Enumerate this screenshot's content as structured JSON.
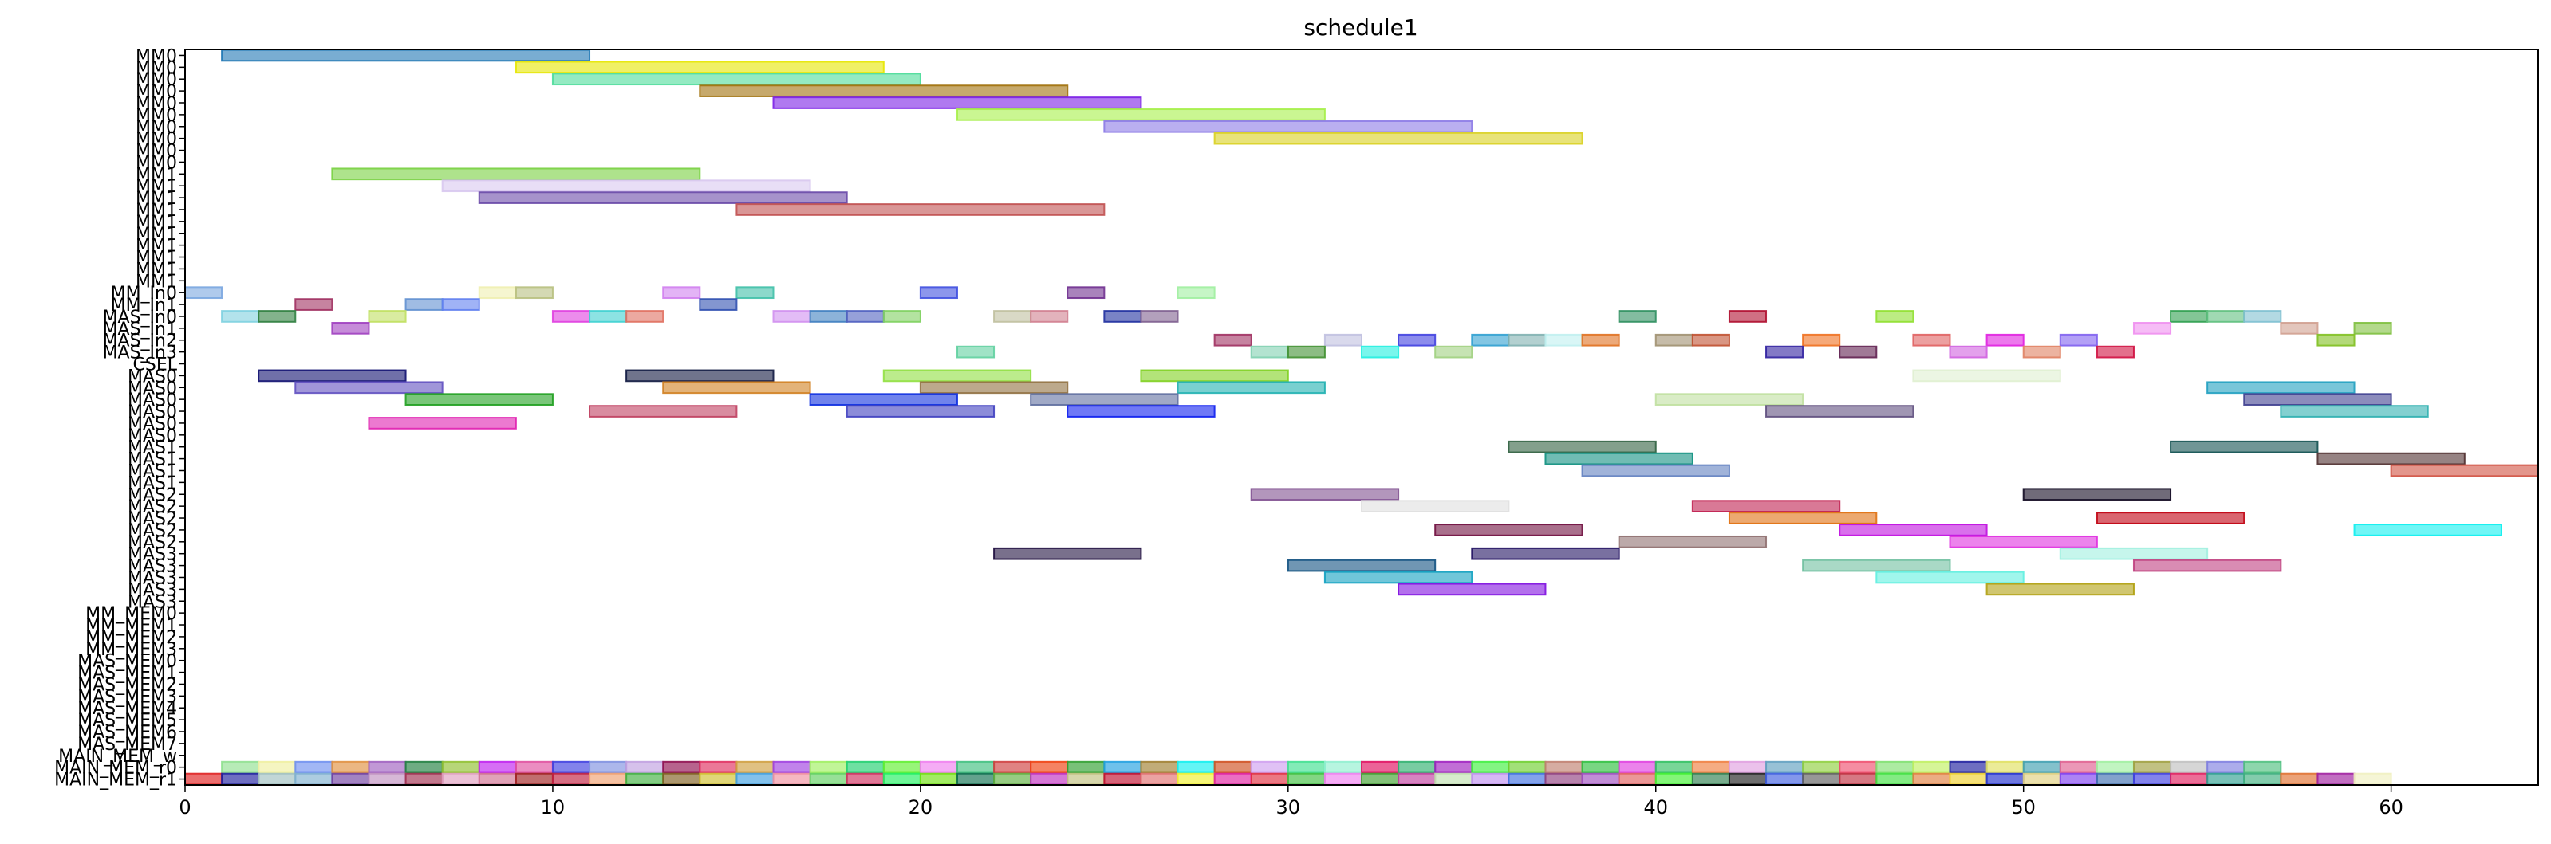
{
  "chart_data": {
    "type": "gantt",
    "title": "schedule1",
    "xlim": [
      0,
      64
    ],
    "x_ticks": [
      0,
      10,
      20,
      30,
      40,
      50,
      60
    ],
    "grid": false,
    "rows": [
      "MM0",
      "MM0",
      "MM0",
      "MM0",
      "MM0",
      "MM0",
      "MM0",
      "MM0",
      "MM0",
      "MM0",
      "MM1",
      "MM1",
      "MM1",
      "MM1",
      "MM1",
      "MM1",
      "MM1",
      "MM1",
      "MM1",
      "MM1",
      "MM_In0",
      "MM_In1",
      "MAS_In0",
      "MAS_In1",
      "MAS_In2",
      "MAS_In3",
      "CSEL",
      "MAS0",
      "MAS0",
      "MAS0",
      "MAS0",
      "MAS0",
      "MAS0",
      "MAS1",
      "MAS1",
      "MAS1",
      "MAS1",
      "MAS2",
      "MAS2",
      "MAS2",
      "MAS2",
      "MAS2",
      "MAS3",
      "MAS3",
      "MAS3",
      "MAS3",
      "MAS3",
      "MM_MEM0",
      "MM_MEM1",
      "MM_MEM2",
      "MM_MEM3",
      "MAS_MEM0",
      "MAS_MEM1",
      "MAS_MEM2",
      "MAS_MEM3",
      "MAS_MEM4",
      "MAS_MEM5",
      "MAS_MEM6",
      "MAS_MEM7",
      "MAIN_MEM_w",
      "MAIN_MEM_r0",
      "MAIN_MEM_r1"
    ],
    "tasks": [
      {
        "row": 0,
        "start": 1,
        "end": 11,
        "color": "#1f77b4"
      },
      {
        "row": 1,
        "start": 9,
        "end": 19,
        "color": "#e6e600"
      },
      {
        "row": 2,
        "start": 10,
        "end": 20,
        "color": "#4ddc9a"
      },
      {
        "row": 3,
        "start": 14,
        "end": 24,
        "color": "#a0700a"
      },
      {
        "row": 4,
        "start": 16,
        "end": 26,
        "color": "#7b1fe6"
      },
      {
        "row": 5,
        "start": 21,
        "end": 31,
        "color": "#a6f04a"
      },
      {
        "row": 6,
        "start": 25,
        "end": 35,
        "color": "#8c7ae6"
      },
      {
        "row": 7,
        "start": 28,
        "end": 38,
        "color": "#d9d020"
      },
      {
        "row": 10,
        "start": 4,
        "end": 14,
        "color": "#78d040"
      },
      {
        "row": 11,
        "start": 7,
        "end": 17,
        "color": "#d8c8f0"
      },
      {
        "row": 12,
        "start": 8,
        "end": 18,
        "color": "#6a4aa8"
      },
      {
        "row": 13,
        "start": 15,
        "end": 25,
        "color": "#c05050"
      },
      {
        "row": 20,
        "start": 0,
        "end": 1,
        "color": "#7aa6e0"
      },
      {
        "row": 20,
        "start": 8,
        "end": 9,
        "color": "#f0f0b0"
      },
      {
        "row": 20,
        "start": 9,
        "end": 10,
        "color": "#b8c080"
      },
      {
        "row": 20,
        "start": 13,
        "end": 14,
        "color": "#d080f0"
      },
      {
        "row": 20,
        "start": 15,
        "end": 16,
        "color": "#40c0a8"
      },
      {
        "row": 20,
        "start": 20,
        "end": 21,
        "color": "#4050e0"
      },
      {
        "row": 20,
        "start": 24,
        "end": 25,
        "color": "#703090"
      },
      {
        "row": 20,
        "start": 27,
        "end": 28,
        "color": "#a0f0a0"
      },
      {
        "row": 21,
        "start": 3,
        "end": 4,
        "color": "#a03060"
      },
      {
        "row": 21,
        "start": 6,
        "end": 7,
        "color": "#6090d0"
      },
      {
        "row": 21,
        "start": 7,
        "end": 8,
        "color": "#6080f0"
      },
      {
        "row": 21,
        "start": 14,
        "end": 15,
        "color": "#3050b0"
      },
      {
        "row": 22,
        "start": 1,
        "end": 2,
        "color": "#80d0e0"
      },
      {
        "row": 22,
        "start": 2,
        "end": 3,
        "color": "#308040"
      },
      {
        "row": 22,
        "start": 5,
        "end": 6,
        "color": "#c0e060"
      },
      {
        "row": 22,
        "start": 10,
        "end": 11,
        "color": "#e040e0"
      },
      {
        "row": 22,
        "start": 11,
        "end": 12,
        "color": "#40d0d0"
      },
      {
        "row": 22,
        "start": 12,
        "end": 13,
        "color": "#e07060"
      },
      {
        "row": 22,
        "start": 16,
        "end": 17,
        "color": "#d090f0"
      },
      {
        "row": 22,
        "start": 17,
        "end": 18,
        "color": "#4080c0"
      },
      {
        "row": 22,
        "start": 18,
        "end": 19,
        "color": "#5060c0"
      },
      {
        "row": 22,
        "start": 19,
        "end": 20,
        "color": "#80d060"
      },
      {
        "row": 22,
        "start": 22,
        "end": 23,
        "color": "#c0c0a0"
      },
      {
        "row": 22,
        "start": 23,
        "end": 24,
        "color": "#d08090"
      },
      {
        "row": 22,
        "start": 25,
        "end": 26,
        "color": "#2030a0"
      },
      {
        "row": 22,
        "start": 26,
        "end": 27,
        "color": "#806090"
      },
      {
        "row": 22,
        "start": 39,
        "end": 40,
        "color": "#309060"
      },
      {
        "row": 22,
        "start": 42,
        "end": 43,
        "color": "#b01030"
      },
      {
        "row": 22,
        "start": 46,
        "end": 47,
        "color": "#90e030"
      },
      {
        "row": 22,
        "start": 54,
        "end": 55,
        "color": "#30a050"
      },
      {
        "row": 22,
        "start": 55,
        "end": 56,
        "color": "#60c080"
      },
      {
        "row": 22,
        "start": 56,
        "end": 57,
        "color": "#80c0d0"
      },
      {
        "row": 23,
        "start": 4,
        "end": 5,
        "color": "#a040c0"
      },
      {
        "row": 23,
        "start": 53,
        "end": 54,
        "color": "#f090f0"
      },
      {
        "row": 23,
        "start": 57,
        "end": 58,
        "color": "#d0a090"
      },
      {
        "row": 23,
        "start": 59,
        "end": 60,
        "color": "#80c040"
      },
      {
        "row": 24,
        "start": 28,
        "end": 29,
        "color": "#a03060"
      },
      {
        "row": 24,
        "start": 31,
        "end": 32,
        "color": "#c0c0e0"
      },
      {
        "row": 24,
        "start": 33,
        "end": 34,
        "color": "#4040e0"
      },
      {
        "row": 24,
        "start": 35,
        "end": 36,
        "color": "#30a0d0"
      },
      {
        "row": 24,
        "start": 36,
        "end": 37,
        "color": "#80b0b0"
      },
      {
        "row": 24,
        "start": 37,
        "end": 38,
        "color": "#c0f0f0"
      },
      {
        "row": 24,
        "start": 38,
        "end": 39,
        "color": "#e07020"
      },
      {
        "row": 24,
        "start": 40,
        "end": 41,
        "color": "#a09070"
      },
      {
        "row": 24,
        "start": 41,
        "end": 42,
        "color": "#c05030"
      },
      {
        "row": 24,
        "start": 44,
        "end": 45,
        "color": "#f07020"
      },
      {
        "row": 24,
        "start": 47,
        "end": 48,
        "color": "#e06060"
      },
      {
        "row": 24,
        "start": 49,
        "end": 50,
        "color": "#e020e0"
      },
      {
        "row": 24,
        "start": 51,
        "end": 52,
        "color": "#8060f0"
      },
      {
        "row": 24,
        "start": 58,
        "end": 59,
        "color": "#80c020"
      },
      {
        "row": 25,
        "start": 21,
        "end": 22,
        "color": "#60d0a0"
      },
      {
        "row": 25,
        "start": 29,
        "end": 30,
        "color": "#80d0b0"
      },
      {
        "row": 25,
        "start": 30,
        "end": 31,
        "color": "#409030"
      },
      {
        "row": 25,
        "start": 32,
        "end": 33,
        "color": "#20f0e0"
      },
      {
        "row": 25,
        "start": 34,
        "end": 35,
        "color": "#a0d080"
      },
      {
        "row": 25,
        "start": 43,
        "end": 44,
        "color": "#3020a0"
      },
      {
        "row": 25,
        "start": 45,
        "end": 46,
        "color": "#602050"
      },
      {
        "row": 25,
        "start": 48,
        "end": 49,
        "color": "#d060e0"
      },
      {
        "row": 25,
        "start": 50,
        "end": 51,
        "color": "#e08060"
      },
      {
        "row": 25,
        "start": 52,
        "end": 53,
        "color": "#d01040"
      },
      {
        "row": 27,
        "start": 2,
        "end": 6,
        "color": "#101070"
      },
      {
        "row": 27,
        "start": 12,
        "end": 16,
        "color": "#101840"
      },
      {
        "row": 27,
        "start": 19,
        "end": 23,
        "color": "#90e040"
      },
      {
        "row": 27,
        "start": 26,
        "end": 30,
        "color": "#80d020"
      },
      {
        "row": 27,
        "start": 47,
        "end": 51,
        "color": "#e0f0d0"
      },
      {
        "row": 28,
        "start": 3,
        "end": 7,
        "color": "#6050c0"
      },
      {
        "row": 28,
        "start": 13,
        "end": 17,
        "color": "#d08020"
      },
      {
        "row": 28,
        "start": 20,
        "end": 24,
        "color": "#907040"
      },
      {
        "row": 28,
        "start": 27,
        "end": 31,
        "color": "#20b0b0"
      },
      {
        "row": 28,
        "start": 55,
        "end": 59,
        "color": "#20a0c0"
      },
      {
        "row": 29,
        "start": 6,
        "end": 10,
        "color": "#20a020"
      },
      {
        "row": 29,
        "start": 17,
        "end": 21,
        "color": "#1030e0"
      },
      {
        "row": 29,
        "start": 23,
        "end": 27,
        "color": "#6070a0"
      },
      {
        "row": 29,
        "start": 40,
        "end": 44,
        "color": "#c0e0a0"
      },
      {
        "row": 29,
        "start": 56,
        "end": 60,
        "color": "#404090"
      },
      {
        "row": 30,
        "start": 11,
        "end": 15,
        "color": "#c04060"
      },
      {
        "row": 30,
        "start": 18,
        "end": 22,
        "color": "#4040c0"
      },
      {
        "row": 30,
        "start": 24,
        "end": 28,
        "color": "#1020f0"
      },
      {
        "row": 30,
        "start": 43,
        "end": 47,
        "color": "#605080"
      },
      {
        "row": 30,
        "start": 57,
        "end": 61,
        "color": "#30b0b0"
      },
      {
        "row": 31,
        "start": 5,
        "end": 9,
        "color": "#e020b0"
      },
      {
        "row": 33,
        "start": 36,
        "end": 40,
        "color": "#306040"
      },
      {
        "row": 33,
        "start": 54,
        "end": 58,
        "color": "#105050"
      },
      {
        "row": 34,
        "start": 37,
        "end": 41,
        "color": "#109080"
      },
      {
        "row": 34,
        "start": 58,
        "end": 62,
        "color": "#503030"
      },
      {
        "row": 35,
        "start": 38,
        "end": 42,
        "color": "#6080c0"
      },
      {
        "row": 35,
        "start": 60,
        "end": 64,
        "color": "#d05040"
      },
      {
        "row": 37,
        "start": 29,
        "end": 33,
        "color": "#805090"
      },
      {
        "row": 37,
        "start": 50,
        "end": 54,
        "color": "#100820"
      },
      {
        "row": 38,
        "start": 41,
        "end": 45,
        "color": "#c02050"
      },
      {
        "row": 38,
        "start": 32,
        "end": 36,
        "color": "#e0e0e0"
      },
      {
        "row": 39,
        "start": 42,
        "end": 46,
        "color": "#e07010"
      },
      {
        "row": 39,
        "start": 52,
        "end": 56,
        "color": "#c00010"
      },
      {
        "row": 40,
        "start": 34,
        "end": 38,
        "color": "#701040"
      },
      {
        "row": 40,
        "start": 45,
        "end": 49,
        "color": "#c010e0"
      },
      {
        "row": 40,
        "start": 59,
        "end": 63,
        "color": "#10f0f0"
      },
      {
        "row": 41,
        "start": 39,
        "end": 43,
        "color": "#907070"
      },
      {
        "row": 41,
        "start": 48,
        "end": 52,
        "color": "#e030e0"
      },
      {
        "row": 42,
        "start": 22,
        "end": 26,
        "color": "#201040"
      },
      {
        "row": 42,
        "start": 35,
        "end": 39,
        "color": "#201060"
      },
      {
        "row": 42,
        "start": 51,
        "end": 55,
        "color": "#a0f0e0"
      },
      {
        "row": 43,
        "start": 30,
        "end": 34,
        "color": "#105080"
      },
      {
        "row": 43,
        "start": 44,
        "end": 48,
        "color": "#70c0a0"
      },
      {
        "row": 43,
        "start": 53,
        "end": 57,
        "color": "#c04080"
      },
      {
        "row": 44,
        "start": 31,
        "end": 35,
        "color": "#10a0c0"
      },
      {
        "row": 44,
        "start": 46,
        "end": 50,
        "color": "#60f0e0"
      },
      {
        "row": 45,
        "start": 33,
        "end": 37,
        "color": "#8010e0"
      },
      {
        "row": 45,
        "start": 49,
        "end": 53,
        "color": "#b0a010"
      }
    ],
    "mem_r0_colors": [
      "#90e090",
      "#f0f0a0",
      "#7090f0",
      "#e09040",
      "#a060c0",
      "#208040",
      "#90c030",
      "#c020f0",
      "#e050a0",
      "#4040e0",
      "#8090e0",
      "#c0a0e0",
      "#901050",
      "#e03060",
      "#d0a040",
      "#a040e0",
      "#a0f060",
      "#20d070",
      "#60f030",
      "#f080f0",
      "#40c080",
      "#d04040",
      "#f04010",
      "#30a030",
      "#20a0e0",
      "#a08030",
      "#10f0f0",
      "#d05020",
      "#d0a0f0",
      "#40e090",
      "#90f0d0",
      "#e01060",
      "#30b070",
      "#a020c0",
      "#40f040",
      "#70d030",
      "#c08070",
      "#30c040",
      "#e040e0",
      "#30c060",
      "#f08040",
      "#e0a0e0",
      "#60a0c0",
      "#90d040",
      "#f05070",
      "#80e070",
      "#c0f060",
      "#2020a0",
      "#e0e060",
      "#40a0b0",
      "#e06090",
      "#a0f0a0",
      "#a0a040",
      "#c0c0c0",
      "#8080e0",
      "#50c080"
    ],
    "mem_r1_colors": [
      "#e02020",
      "#2020a0",
      "#a0c0c0",
      "#80b0d0",
      "#7040a0",
      "#c090c0",
      "#a03050",
      "#e0a0c0",
      "#d07090",
      "#a02020",
      "#c02040",
      "#f0a070",
      "#40b040",
      "#806020",
      "#d0c030",
      "#40a0e0",
      "#f090a0",
      "#60d060",
      "#d03060",
      "#20f060",
      "#70e010",
      "#107050",
      "#60b040",
      "#c030c0",
      "#c0c080",
      "#c01030",
      "#e07070",
      "#f0f030",
      "#e020a0",
      "#e03040",
      "#40c040",
      "#f080f0",
      "#40a030",
      "#c040a0",
      "#c0e0b0",
      "#c090f0",
      "#4070e0",
      "#904080",
      "#a050c0",
      "#e06060",
      "#40f030",
      "#308050",
      "#202020",
      "#4060e0",
      "#606060",
      "#c03040",
      "#40e040",
      "#e08040",
      "#f0d030",
      "#2030d0",
      "#e0d080",
      "#8040f0",
      "#4070b0",
      "#4040e0",
      "#e02060",
      "#30a090",
      "#40b080",
      "#e07030",
      "#a020a0",
      "#f0f0c0"
    ]
  }
}
